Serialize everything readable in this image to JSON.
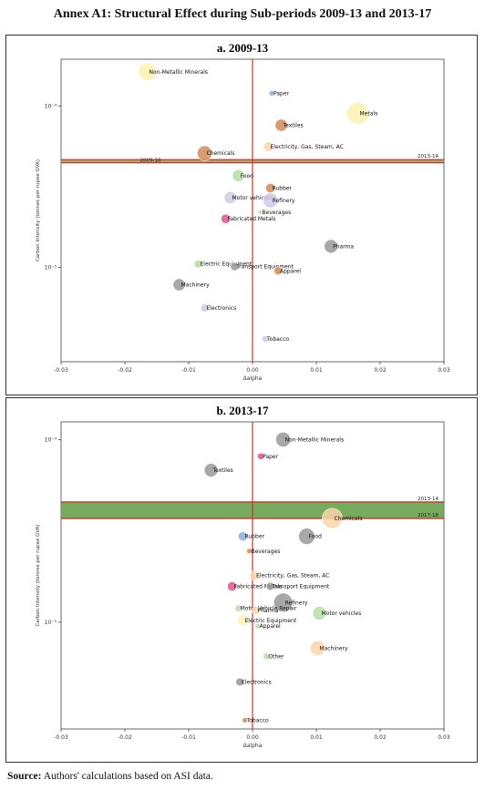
{
  "title": "Annex A1: Structural Effect during Sub-periods 2009-13 and 2013-17",
  "source_label": "Source:",
  "source_text": "Authors' calculations based on ASI data.",
  "chart_data": [
    {
      "type": "scatter",
      "title": "a. 2009-13",
      "xlabel": "Δalpha",
      "ylabel": "Carbon Intensity (tonnes per rupee GVA)",
      "xlim": [
        -0.03,
        0.03
      ],
      "xticks": [
        "-0.03",
        "-0.02",
        "-0.01",
        "0.00",
        "0.01",
        "0.02",
        "0.03"
      ],
      "yscale": "log",
      "ylim": [
        2.6e-06,
        0.000195
      ],
      "ytick_labels": [
        {
          "value": 0.0001,
          "label": "10⁻⁴"
        },
        {
          "value": 1e-05,
          "label": "10⁻⁵"
        }
      ],
      "vline_x": 0.0,
      "band": {
        "low": 4.45e-05,
        "high": 4.65e-05,
        "label_low": "2009-10",
        "label_high": "2013-14",
        "color": "#a79455"
      },
      "points": [
        {
          "label": "Non-Metallic Minerals",
          "x": -0.0165,
          "y": 0.000163,
          "size": 13,
          "color": "#fdf3b0"
        },
        {
          "label": "Paper",
          "x": 0.003,
          "y": 0.00012,
          "size": 4,
          "color": "#8fb0e0"
        },
        {
          "label": "Metals",
          "x": 0.0165,
          "y": 9e-05,
          "size": 16,
          "color": "#fdf3b0"
        },
        {
          "label": "Textiles",
          "x": 0.0045,
          "y": 7.6e-05,
          "size": 9,
          "color": "#d48c5b"
        },
        {
          "label": "Electricity, Gas, Steam, AC",
          "x": 0.0025,
          "y": 5.6e-05,
          "size": 7,
          "color": "#fbd6a8"
        },
        {
          "label": "Chemicals",
          "x": -0.0075,
          "y": 5.1e-05,
          "size": 11,
          "color": "#d48c5b"
        },
        {
          "label": "Food",
          "x": -0.0022,
          "y": 3.7e-05,
          "size": 9,
          "color": "#b6e0a4"
        },
        {
          "label": "Rubber",
          "x": 0.0028,
          "y": 3.1e-05,
          "size": 7,
          "color": "#d48c5b"
        },
        {
          "label": "Motor vehicles",
          "x": -0.0035,
          "y": 2.7e-05,
          "size": 9,
          "color": "#cfcbe6"
        },
        {
          "label": "Refinery",
          "x": 0.0028,
          "y": 2.6e-05,
          "size": 11,
          "color": "#cfcbe6"
        },
        {
          "label": "Beverages",
          "x": 0.0012,
          "y": 2.2e-05,
          "size": 3,
          "color": "#b6e0a4"
        },
        {
          "label": "Fabricated Metals",
          "x": -0.0042,
          "y": 2e-05,
          "size": 7,
          "color": "#e0578e"
        },
        {
          "label": "Pharma",
          "x": 0.0123,
          "y": 1.35e-05,
          "size": 10,
          "color": "#9a9a9a"
        },
        {
          "label": "Electric Equipment",
          "x": -0.0085,
          "y": 1.05e-05,
          "size": 6,
          "color": "#b6e0a4"
        },
        {
          "label": "Transport Equipment",
          "x": -0.0028,
          "y": 1.01e-05,
          "size": 6,
          "color": "#9a9a9a"
        },
        {
          "label": "Apparel",
          "x": 0.004,
          "y": 9.5e-06,
          "size": 6,
          "color": "#d48c5b"
        },
        {
          "label": "Machinery",
          "x": -0.0115,
          "y": 7.8e-06,
          "size": 9,
          "color": "#9a9a9a"
        },
        {
          "label": "Electronics",
          "x": -0.0075,
          "y": 5.6e-06,
          "size": 6,
          "color": "#cfcbe6"
        },
        {
          "label": "Tobacco",
          "x": 0.002,
          "y": 3.6e-06,
          "size": 5,
          "color": "#cfcbe6"
        }
      ]
    },
    {
      "type": "scatter",
      "title": "b. 2013-17",
      "xlabel": "Δalpha",
      "ylabel": "Carbon Intensity (tonnes per rupee GVA)",
      "xlim": [
        -0.03,
        0.03
      ],
      "xticks": [
        "-0.03",
        "-0.02",
        "-0.01",
        "0.00",
        "0.01",
        "0.02",
        "0.03"
      ],
      "yscale": "log",
      "ylim": [
        2.6e-06,
        0.000125
      ],
      "ytick_labels": [
        {
          "value": 0.0001,
          "label": "10⁻⁴"
        },
        {
          "value": 1e-05,
          "label": "10⁻⁵"
        }
      ],
      "vline_x": 0.0,
      "band": {
        "low": 3.7e-05,
        "high": 4.55e-05,
        "label_low": "2017-18",
        "label_high": "2013-14",
        "color": "#5f9e43"
      },
      "points": [
        {
          "label": "Non-Metallic Minerals",
          "x": 0.0048,
          "y": 0.0001,
          "size": 11,
          "color": "#9a9a9a"
        },
        {
          "label": "Paper",
          "x": 0.0013,
          "y": 8.1e-05,
          "size": 5,
          "color": "#e0578e"
        },
        {
          "label": "Textiles",
          "x": -0.0065,
          "y": 6.8e-05,
          "size": 10,
          "color": "#9a9a9a"
        },
        {
          "label": "Chemicals",
          "x": 0.0125,
          "y": 3.7e-05,
          "size": 15,
          "color": "#fbd6a8"
        },
        {
          "label": "Rubber",
          "x": -0.0015,
          "y": 2.95e-05,
          "size": 7,
          "color": "#8fb0e0"
        },
        {
          "label": "Food",
          "x": 0.0085,
          "y": 2.95e-05,
          "size": 12,
          "color": "#9a9a9a"
        },
        {
          "label": "Beverages",
          "x": -0.0005,
          "y": 2.45e-05,
          "size": 4,
          "color": "#d48c5b"
        },
        {
          "label": "Electricity, Gas, Steam, AC",
          "x": 0.0003,
          "y": 1.8e-05,
          "size": 7,
          "color": "#fbd6a8"
        },
        {
          "label": "Fabricated Metals",
          "x": -0.0032,
          "y": 1.57e-05,
          "size": 7,
          "color": "#e0578e"
        },
        {
          "label": "Transport Equipment",
          "x": 0.0028,
          "y": 1.57e-05,
          "size": 6,
          "color": "#9a9a9a"
        },
        {
          "label": "Refinery",
          "x": 0.0048,
          "y": 1.28e-05,
          "size": 14,
          "color": "#9a9a9a"
        },
        {
          "label": "Motor Vehicle Repair",
          "x": -0.0022,
          "y": 1.19e-05,
          "size": 5,
          "color": "#b6e0a4"
        },
        {
          "label": "Pharma",
          "x": 0.0005,
          "y": 1.16e-05,
          "size": 6,
          "color": "#fbd6a8"
        },
        {
          "label": "Motor vehicles",
          "x": 0.0105,
          "y": 1.12e-05,
          "size": 10,
          "color": "#b6e0a4"
        },
        {
          "label": "Electric Equipment",
          "x": -0.0015,
          "y": 1.02e-05,
          "size": 8,
          "color": "#fdf3b0"
        },
        {
          "label": "Apparel",
          "x": 0.0008,
          "y": 9.5e-06,
          "size": 4,
          "color": "#b6e0a4"
        },
        {
          "label": "Machinery",
          "x": 0.0102,
          "y": 7.2e-06,
          "size": 11,
          "color": "#fbd6a8"
        },
        {
          "label": "Other",
          "x": 0.0022,
          "y": 6.5e-06,
          "size": 5,
          "color": "#b6e0a4"
        },
        {
          "label": "Electronics",
          "x": -0.002,
          "y": 4.7e-06,
          "size": 6,
          "color": "#9a9a9a"
        },
        {
          "label": "Tobacco",
          "x": -0.0012,
          "y": 2.9e-06,
          "size": 4,
          "color": "#d48c5b"
        }
      ]
    }
  ]
}
